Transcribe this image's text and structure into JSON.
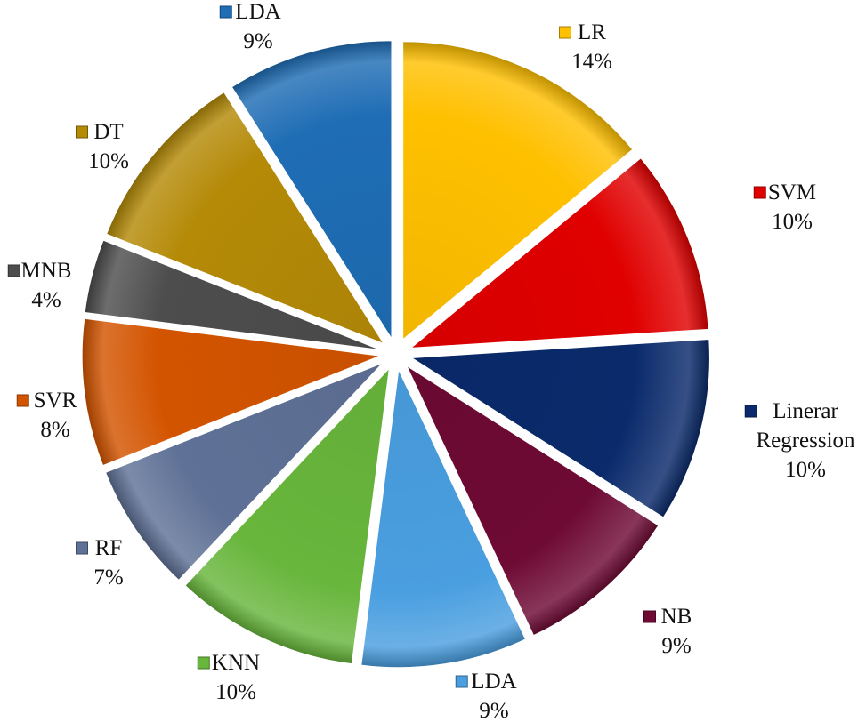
{
  "chart_data": {
    "type": "pie",
    "exploded": true,
    "start_angle_deg": 0,
    "direction": "clockwise",
    "slices": [
      {
        "label": "LR",
        "value": 14,
        "value_label": "14%",
        "color": "#FFC000"
      },
      {
        "label": "SVM",
        "value": 10,
        "value_label": "10%",
        "color": "#E00000"
      },
      {
        "label": "Linerar Regression",
        "label_lines": [
          "Linerar",
          "Regression"
        ],
        "value": 10,
        "value_label": "10%",
        "color": "#0A2A6B"
      },
      {
        "label": "NB",
        "value": 9,
        "value_label": "9%",
        "color": "#6E0A34"
      },
      {
        "label": "LDA",
        "value": 9,
        "value_label": "9%",
        "color": "#4A9FE0"
      },
      {
        "label": "KNN",
        "value": 10,
        "value_label": "10%",
        "color": "#68B63C"
      },
      {
        "label": "RF",
        "value": 7,
        "value_label": "7%",
        "color": "#5F7196"
      },
      {
        "label": "SVR",
        "value": 8,
        "value_label": "8%",
        "color": "#D35400"
      },
      {
        "label": "MNB",
        "value": 4,
        "value_label": "4%",
        "color": "#4D4D4D"
      },
      {
        "label": "DT",
        "value": 10,
        "value_label": "10%",
        "color": "#B48A07"
      },
      {
        "label": "LDA",
        "value": 9,
        "value_label": "9%",
        "color": "#1F6DB5"
      }
    ]
  }
}
